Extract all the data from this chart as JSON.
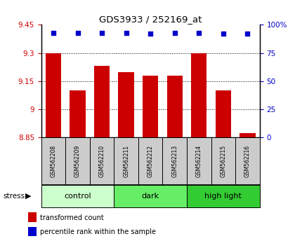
{
  "title": "GDS3933 / 252169_at",
  "samples": [
    "GSM562208",
    "GSM562209",
    "GSM562210",
    "GSM562211",
    "GSM562212",
    "GSM562213",
    "GSM562214",
    "GSM562215",
    "GSM562216"
  ],
  "bar_values": [
    9.3,
    9.103,
    9.23,
    9.2,
    9.18,
    9.18,
    9.3,
    9.103,
    8.875
  ],
  "percentile_values": [
    93,
    93,
    93,
    93,
    92,
    93,
    93,
    92,
    92
  ],
  "ylim": [
    8.85,
    9.45
  ],
  "ylim_right": [
    0,
    100
  ],
  "yticks_left": [
    8.85,
    9.0,
    9.15,
    9.3,
    9.45
  ],
  "ytick_labels_left": [
    "8.85",
    "9",
    "9.15",
    "9.3",
    "9.45"
  ],
  "yticks_right": [
    0,
    25,
    50,
    75,
    100
  ],
  "ytick_labels_right": [
    "0",
    "25",
    "50",
    "75",
    "100%"
  ],
  "bar_color": "#cc0000",
  "dot_color": "#0000cc",
  "group_colors": [
    "#ccffcc",
    "#66ee66",
    "#33cc33"
  ],
  "group_labels": [
    "control",
    "dark",
    "high light"
  ],
  "group_ranges": [
    [
      0,
      3
    ],
    [
      3,
      6
    ],
    [
      6,
      9
    ]
  ],
  "stress_label": "stress",
  "legend_red": "transformed count",
  "legend_blue": "percentile rank within the sample",
  "sample_bg_color": "#cccccc",
  "grid_color": "#000000"
}
